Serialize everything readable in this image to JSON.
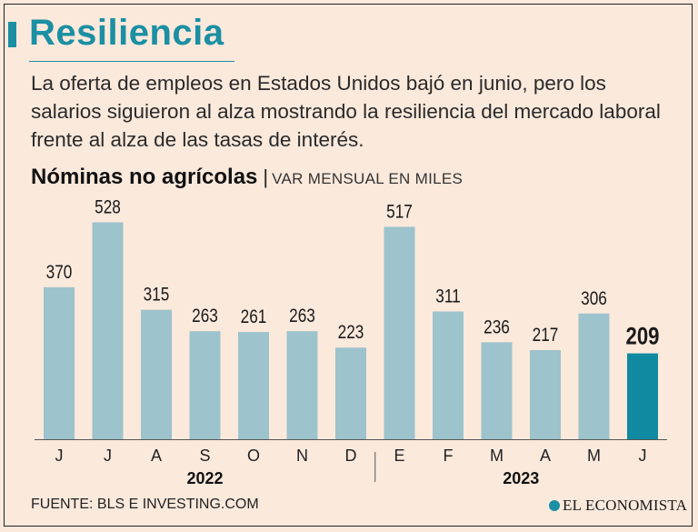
{
  "title": "Resiliencia",
  "subtitle": "La oferta de empleos en Estados Unidos bajó en junio, pero los salarios siguieron al alza mostrando la resiliencia del mercado laboral frente al alza de las tasas de interés.",
  "chart_heading": {
    "main": "Nóminas no agrícolas",
    "separator": "|",
    "unit": "VAR MENSUAL EN MILES"
  },
  "source": "FUENTE: BLS E INVESTING.COM",
  "brand": "EL ECONOMISTA",
  "colors": {
    "bar": "#9dc3cc",
    "highlight": "#108aa0",
    "accent": "#1b8fa3"
  },
  "chart_data": {
    "type": "bar",
    "categories": [
      "J",
      "J",
      "A",
      "S",
      "O",
      "N",
      "D",
      "E",
      "F",
      "M",
      "A",
      "M",
      "J"
    ],
    "values": [
      370,
      528,
      315,
      263,
      261,
      263,
      223,
      517,
      311,
      236,
      217,
      306,
      209
    ],
    "value_labels": [
      "370",
      "528",
      "315",
      "263",
      "261",
      "263",
      "223",
      "517",
      "311",
      "236",
      "217",
      "306",
      "209"
    ],
    "highlight_index": 12,
    "groups": [
      {
        "label": "2022",
        "count": 7
      },
      {
        "label": "2023",
        "count": 6
      }
    ],
    "ylim": [
      0,
      560
    ]
  }
}
